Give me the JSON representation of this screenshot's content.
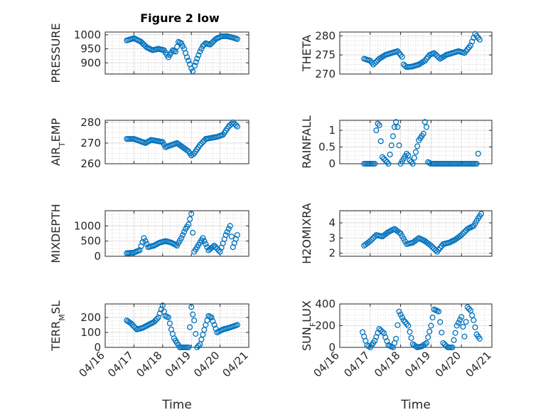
{
  "figure": {
    "title": "Figure 2 low"
  },
  "chart_data": [
    {
      "type": "scatter",
      "name_id": "pressure",
      "title": "Figure 2 low",
      "xlabel": "",
      "ylabel": "PRESSURE",
      "ylim": [
        860,
        1010
      ],
      "yticks": [
        900,
        950,
        1000
      ],
      "yticklabels": [
        "900",
        "950",
        "1000"
      ],
      "xlim": [
        "04/16",
        "04/21"
      ],
      "grid": true,
      "marker": "circle",
      "color": "#0072BD",
      "x": [
        0.75,
        1,
        1.25,
        1.45,
        1.65,
        1.85,
        2.05,
        2.2,
        2.35,
        2.45,
        2.55,
        2.65,
        2.75,
        2.85,
        2.95,
        3.0,
        3.05,
        3.12,
        3.2,
        3.3,
        3.4,
        3.5,
        3.65,
        3.85,
        4.05,
        4.25,
        4.45,
        4.6
      ],
      "y": [
        980,
        988,
        975,
        955,
        945,
        950,
        945,
        920,
        945,
        940,
        975,
        970,
        950,
        920,
        895,
        880,
        870,
        890,
        915,
        940,
        960,
        970,
        965,
        985,
        995,
        995,
        990,
        985
      ]
    },
    {
      "type": "scatter",
      "name_id": "theta",
      "xlabel": "",
      "ylabel": "THETA",
      "ylim": [
        270,
        281
      ],
      "yticks": [
        270,
        275,
        280
      ],
      "yticklabels": [
        "270",
        "275",
        "280"
      ],
      "xlim": [
        "04/16",
        "04/21"
      ],
      "grid": true,
      "marker": "circle",
      "color": "#0072BD",
      "x": [
        0.8,
        1,
        1.1,
        1.3,
        1.5,
        1.7,
        1.9,
        2.05,
        2.1,
        2.2,
        2.4,
        2.6,
        2.8,
        2.95,
        3.1,
        3.3,
        3.5,
        3.7,
        3.9,
        4.1,
        4.3,
        4.45,
        4.6
      ],
      "y": [
        274,
        273.5,
        272.5,
        274,
        275,
        275.5,
        276,
        274.5,
        272.5,
        271.8,
        272,
        272.5,
        273.5,
        275,
        275.5,
        274,
        275,
        275.5,
        276,
        275.5,
        277.5,
        280.5,
        279
      ]
    },
    {
      "type": "scatter",
      "name_id": "air_temp",
      "xlabel": "",
      "ylabel": "AIR_TEMP",
      "ylim": [
        260,
        281
      ],
      "yticks": [
        260,
        270,
        280
      ],
      "yticklabels": [
        "260",
        "270",
        "280"
      ],
      "xlim": [
        "04/16",
        "04/21"
      ],
      "grid": true,
      "marker": "circle",
      "color": "#0072BD",
      "x": [
        0.75,
        1,
        1.2,
        1.4,
        1.6,
        1.8,
        2.0,
        2.1,
        2.3,
        2.5,
        2.7,
        2.9,
        3.0,
        3.1,
        3.3,
        3.5,
        3.7,
        3.9,
        4.1,
        4.3,
        4.45,
        4.6
      ],
      "y": [
        272,
        272,
        271,
        270,
        271.5,
        271,
        270.5,
        268,
        269,
        270,
        268,
        266,
        264,
        265,
        269,
        272,
        272.5,
        273,
        274,
        278,
        280,
        278
      ]
    },
    {
      "type": "scatter",
      "name_id": "rainfall",
      "xlabel": "",
      "ylabel": "RAINFALL",
      "ylim": [
        0,
        1.3
      ],
      "yticks": [
        0,
        0.5,
        1
      ],
      "yticklabels": [
        "0",
        "0.5",
        "1"
      ],
      "xlim": [
        "04/16",
        "04/21"
      ],
      "grid": true,
      "marker": "circle",
      "color": "#0072BD",
      "x": [
        0.8,
        1.0,
        1.15,
        1.2,
        1.25,
        1.3,
        1.4,
        1.6,
        1.8,
        1.85,
        1.9,
        2.0,
        2.2,
        2.25,
        2.3,
        2.4,
        2.6,
        2.75,
        2.8,
        2.85,
        2.9,
        3.0,
        3.5,
        4.0,
        4.5,
        4.55
      ],
      "y": [
        0,
        0,
        0,
        1.0,
        1.2,
        1.15,
        0.2,
        0,
        1.1,
        1.25,
        1.1,
        0,
        0.3,
        0.25,
        0.1,
        0,
        0.7,
        0.9,
        1.25,
        1.1,
        0.05,
        0,
        0,
        0,
        0,
        0.3
      ]
    },
    {
      "type": "scatter",
      "name_id": "mixdepth",
      "xlabel": "",
      "ylabel": "MIXDEPTH",
      "ylim": [
        0,
        1500
      ],
      "yticks": [
        0,
        500,
        1000
      ],
      "yticklabels": [
        "0",
        "500",
        "1000"
      ],
      "xlim": [
        "04/16",
        "04/21"
      ],
      "grid": true,
      "marker": "circle",
      "color": "#0072BD",
      "x": [
        0.75,
        1,
        1.2,
        1.35,
        1.5,
        1.7,
        1.9,
        2.1,
        2.3,
        2.5,
        2.65,
        2.8,
        2.9,
        3.0,
        3.1,
        3.2,
        3.4,
        3.6,
        3.8,
        4.0,
        4.2,
        4.35,
        4.45,
        4.6
      ],
      "y": [
        100,
        120,
        200,
        600,
        300,
        350,
        450,
        500,
        450,
        350,
        600,
        900,
        1050,
        1400,
        150,
        300,
        600,
        200,
        350,
        150,
        700,
        1000,
        300,
        700
      ]
    },
    {
      "type": "scatter",
      "name_id": "h2omixra",
      "xlabel": "",
      "ylabel": "H2OMIXRA",
      "ylim": [
        1.8,
        4.8
      ],
      "yticks": [
        2,
        3,
        4
      ],
      "yticklabels": [
        "2",
        "3",
        "4"
      ],
      "xlim": [
        "04/16",
        "04/21"
      ],
      "grid": true,
      "marker": "circle",
      "color": "#0072BD",
      "x": [
        0.8,
        1,
        1.2,
        1.4,
        1.6,
        1.8,
        2.0,
        2.2,
        2.4,
        2.6,
        2.8,
        3.0,
        3.2,
        3.4,
        3.6,
        3.8,
        4.0,
        4.2,
        4.4,
        4.55,
        4.65
      ],
      "y": [
        2.5,
        2.8,
        3.2,
        3.1,
        3.4,
        3.6,
        3.3,
        2.6,
        2.7,
        3.0,
        2.8,
        2.5,
        2.1,
        2.6,
        2.7,
        2.9,
        3.2,
        3.6,
        3.8,
        4.3,
        4.6
      ]
    },
    {
      "type": "scatter",
      "name_id": "terr_msl",
      "xlabel": "Time",
      "ylabel": "TERR_MSL",
      "ylim": [
        0,
        290
      ],
      "yticks": [
        0,
        100,
        200
      ],
      "yticklabels": [
        "0",
        "100",
        "200"
      ],
      "xlim": [
        "04/16",
        "04/21"
      ],
      "xticks": [
        0,
        1,
        2,
        3,
        4,
        5
      ],
      "xticklabels": [
        "04/16",
        "04/17",
        "04/18",
        "04/19",
        "04/20",
        "04/21"
      ],
      "grid": true,
      "marker": "circle",
      "color": "#0072BD",
      "x": [
        0.75,
        0.9,
        1.1,
        1.3,
        1.5,
        1.7,
        1.85,
        2.0,
        2.05,
        2.1,
        2.2,
        2.3,
        2.4,
        2.6,
        2.8,
        2.9,
        3.0,
        3.05,
        3.1,
        3.2,
        3.3,
        3.5,
        3.6,
        3.7,
        3.9,
        4.1,
        4.3,
        4.45,
        4.6
      ],
      "y": [
        180,
        160,
        120,
        130,
        150,
        170,
        200,
        280,
        240,
        210,
        200,
        120,
        60,
        0,
        0,
        0,
        270,
        220,
        180,
        0,
        20,
        150,
        210,
        200,
        100,
        120,
        130,
        140,
        150
      ]
    },
    {
      "type": "scatter",
      "name_id": "sun_flux",
      "xlabel": "Time",
      "ylabel": "SUN_FLUX",
      "ylim": [
        0,
        400
      ],
      "yticks": [
        0,
        200,
        400
      ],
      "yticklabels": [
        "0",
        "200",
        "400"
      ],
      "xlim": [
        "04/16",
        "04/21"
      ],
      "xticks": [
        0,
        1,
        2,
        3,
        4,
        5
      ],
      "xticklabels": [
        "04/16",
        "04/17",
        "04/18",
        "04/19",
        "04/20",
        "04/21"
      ],
      "grid": true,
      "marker": "circle",
      "color": "#0072BD",
      "x": [
        0.75,
        0.9,
        1.0,
        1.15,
        1.3,
        1.45,
        1.6,
        1.75,
        1.85,
        1.95,
        2.1,
        2.25,
        2.4,
        2.55,
        2.7,
        2.85,
        3.0,
        3.1,
        3.25,
        3.4,
        3.55,
        3.7,
        3.85,
        4.0,
        4.1,
        4.2,
        4.3,
        4.4,
        4.5,
        4.6
      ],
      "y": [
        140,
        20,
        0,
        60,
        170,
        130,
        20,
        0,
        80,
        330,
        250,
        200,
        30,
        0,
        10,
        40,
        200,
        350,
        330,
        40,
        0,
        0,
        200,
        280,
        100,
        370,
        340,
        250,
        120,
        80
      ]
    }
  ]
}
